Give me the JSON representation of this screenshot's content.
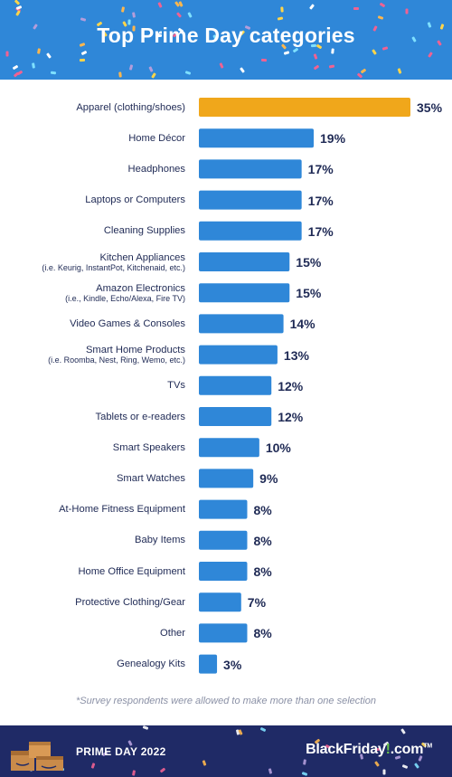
{
  "header": {
    "title": "Top Prime Day categories"
  },
  "colors": {
    "highlight": "#f0a71b",
    "bar": "#2f87d8",
    "text": "#1f2a55",
    "footer_bg": "#1f2a66",
    "header_bg": "#2f87d8"
  },
  "chart_data": {
    "type": "bar",
    "orientation": "horizontal",
    "title": "Top Prime Day categories",
    "value_suffix": "%",
    "xlim": [
      0,
      35
    ],
    "grid": false,
    "categories": [
      {
        "label": "Apparel (clothing/shoes)",
        "sub": "",
        "value": 35,
        "highlight": true
      },
      {
        "label": "Home Décor",
        "sub": "",
        "value": 19
      },
      {
        "label": "Headphones",
        "sub": "",
        "value": 17
      },
      {
        "label": "Laptops or Computers",
        "sub": "",
        "value": 17
      },
      {
        "label": "Cleaning Supplies",
        "sub": "",
        "value": 17
      },
      {
        "label": "Kitchen Appliances",
        "sub": "(i.e. Keurig, InstantPot, Kitchenaid, etc.)",
        "value": 15
      },
      {
        "label": "Amazon Electronics",
        "sub": "(i.e., Kindle, Echo/Alexa, Fire TV)",
        "value": 15
      },
      {
        "label": "Video Games & Consoles",
        "sub": "",
        "value": 14
      },
      {
        "label": "Smart Home Products",
        "sub": "(i.e. Roomba, Nest, Ring, Wemo, etc.)",
        "value": 13
      },
      {
        "label": "TVs",
        "sub": "",
        "value": 12
      },
      {
        "label": "Tablets or e-readers",
        "sub": "",
        "value": 12
      },
      {
        "label": "Smart Speakers",
        "sub": "",
        "value": 10
      },
      {
        "label": "Smart Watches",
        "sub": "",
        "value": 9
      },
      {
        "label": "At-Home Fitness Equipment",
        "sub": "",
        "value": 8
      },
      {
        "label": "Baby Items",
        "sub": "",
        "value": 8
      },
      {
        "label": "Home Office Equipment",
        "sub": "",
        "value": 8
      },
      {
        "label": "Protective Clothing/Gear",
        "sub": "",
        "value": 7
      },
      {
        "label": "Other",
        "sub": "",
        "value": 8
      },
      {
        "label": "Genealogy Kits",
        "sub": "",
        "value": 3
      }
    ]
  },
  "footnote": "*Survey respondents were allowed to make more than one selection",
  "footer": {
    "left_text": "PRIME DAY 2022",
    "brand_name": "BlackFriday",
    "brand_bang": "!",
    "brand_domain": ".com",
    "brand_tm": "TM"
  }
}
